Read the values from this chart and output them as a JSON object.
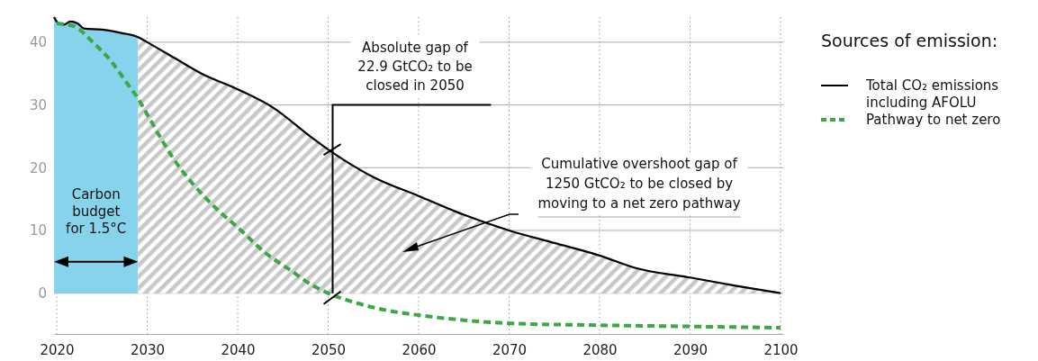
{
  "chart_data": {
    "type": "line",
    "legend_title": "Sources of emission:",
    "xlim": [
      2019.7,
      2100.3
    ],
    "xticks": [
      2020,
      2030,
      2040,
      2050,
      2060,
      2070,
      2080,
      2090,
      2100
    ],
    "ylim": [
      -6.5,
      44
    ],
    "yticks": [
      0,
      10,
      20,
      30,
      40
    ],
    "grid": true,
    "legend": "right",
    "series": [
      {
        "type": "area",
        "color": "#87d3ec",
        "x": [
          2019.7,
          2020.2,
          2020.8,
          2021.5,
          2022.3,
          2023,
          2025,
          2027,
          2029
        ],
        "values": [
          44,
          43,
          42.8,
          43.3,
          43,
          42.2,
          42,
          41.5,
          40.8
        ]
      },
      {
        "type": "area",
        "color": "#c8c8c8",
        "x": [
          2029,
          2030,
          2033,
          2036,
          2040,
          2044,
          2048,
          2050,
          2052,
          2055,
          2060,
          2065,
          2070,
          2075,
          2080,
          2084,
          2090,
          2095,
          2100
        ],
        "values": [
          40.8,
          40,
          37.5,
          35,
          32.5,
          29.5,
          25,
          22.9,
          21,
          18.5,
          15.5,
          12.5,
          10,
          8,
          6,
          4,
          2.5,
          1.2,
          0
        ]
      },
      {
        "name": "Total CO₂ emissions including AFOLU",
        "color": "#000000",
        "line_style": "solid",
        "x": [
          2019.7,
          2020.2,
          2020.8,
          2021.5,
          2022.3,
          2023,
          2025,
          2027,
          2029,
          2030,
          2033,
          2036,
          2040,
          2044,
          2048,
          2050,
          2052,
          2055,
          2060,
          2065,
          2070,
          2075,
          2080,
          2084,
          2090,
          2095,
          2100
        ],
        "values": [
          44,
          43,
          42.8,
          43.3,
          43,
          42.2,
          42,
          41.5,
          40.8,
          40,
          37.5,
          35,
          32.5,
          29.5,
          25,
          22.9,
          21,
          18.5,
          15.5,
          12.5,
          10,
          8,
          6,
          4,
          2.5,
          1.2,
          0
        ]
      },
      {
        "name": "Pathway to net zero",
        "color": "#3aa845",
        "line_style": "dashed",
        "x": [
          2020,
          2021,
          2022,
          2024,
          2026,
          2028,
          2029,
          2030,
          2032,
          2033.6,
          2035,
          2038,
          2040,
          2043,
          2046,
          2048,
          2050,
          2053,
          2056,
          2060,
          2065,
          2070,
          2080,
          2090,
          2100
        ],
        "values": [
          43,
          42.8,
          42.5,
          40,
          37,
          33,
          31,
          28.5,
          23.5,
          20,
          17.5,
          13,
          10.5,
          6.5,
          3.5,
          1.5,
          0,
          -1.5,
          -2.6,
          -3.5,
          -4.3,
          -4.8,
          -5.1,
          -5.3,
          -5.5
        ]
      }
    ],
    "annotations": [
      "Carbon budget for 1.5°C",
      "Absolute gap of 22.9 GtCO₂ to be closed in 2050",
      "Cumulative overshoot gap of 1250 GtCO₂ to be closed by moving to a net zero pathway"
    ]
  }
}
